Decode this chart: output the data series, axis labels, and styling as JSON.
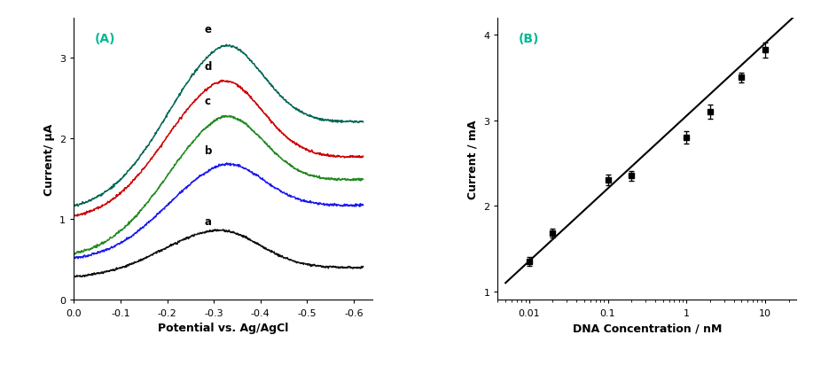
{
  "panel_A": {
    "label": "(A)",
    "label_color": "#00b894",
    "xlabel": "Potential vs. Ag/AgCl",
    "ylabel": "Current/ μA",
    "ylim": [
      0,
      3.5
    ],
    "yticks": [
      0,
      1,
      2,
      3
    ],
    "xticks": [
      0.0,
      -0.1,
      -0.2,
      -0.3,
      -0.4,
      -0.5,
      -0.6
    ],
    "xtick_labels": [
      "0.0",
      "-0.1",
      "-0.2",
      "-0.3",
      "-0.4",
      "-0.5",
      "-0.6"
    ],
    "curves": [
      {
        "label": "a",
        "color": "#111111",
        "peak_x": -0.305,
        "peak_y": 0.88,
        "bl_start": 0.27,
        "bl_end": 0.4
      },
      {
        "label": "b",
        "color": "#1a1aee",
        "peak_x": -0.305,
        "peak_y": 1.75,
        "bl_start": 0.48,
        "bl_end": 1.18
      },
      {
        "label": "c",
        "color": "#228B22",
        "peak_x": -0.305,
        "peak_y": 2.37,
        "bl_start": 0.52,
        "bl_end": 1.5
      },
      {
        "label": "d",
        "color": "#cc0000",
        "peak_x": -0.305,
        "peak_y": 2.8,
        "bl_start": 0.98,
        "bl_end": 1.78
      },
      {
        "label": "e",
        "color": "#006655",
        "peak_x": -0.305,
        "peak_y": 3.26,
        "bl_start": 1.1,
        "bl_end": 2.22
      }
    ]
  },
  "panel_B": {
    "label": "(B)",
    "label_color": "#00b894",
    "xlabel": "DNA Concentration / nM",
    "ylabel": "Current / mA",
    "xlim": [
      0.004,
      25.0
    ],
    "ylim": [
      0.9,
      4.2
    ],
    "yticks": [
      1,
      2,
      3,
      4
    ],
    "data_x": [
      0.01,
      0.02,
      0.1,
      0.2,
      1.0,
      2.0,
      5.0,
      10.0
    ],
    "data_y": [
      1.35,
      1.68,
      2.3,
      2.35,
      2.8,
      3.1,
      3.5,
      3.82
    ],
    "data_yerr": [
      0.05,
      0.05,
      0.06,
      0.06,
      0.07,
      0.08,
      0.06,
      0.09
    ],
    "fit_slope": 0.848,
    "fit_intercept": 3.05,
    "fit_xlog_min": -2.3,
    "fit_xlog_max": 1.5
  }
}
